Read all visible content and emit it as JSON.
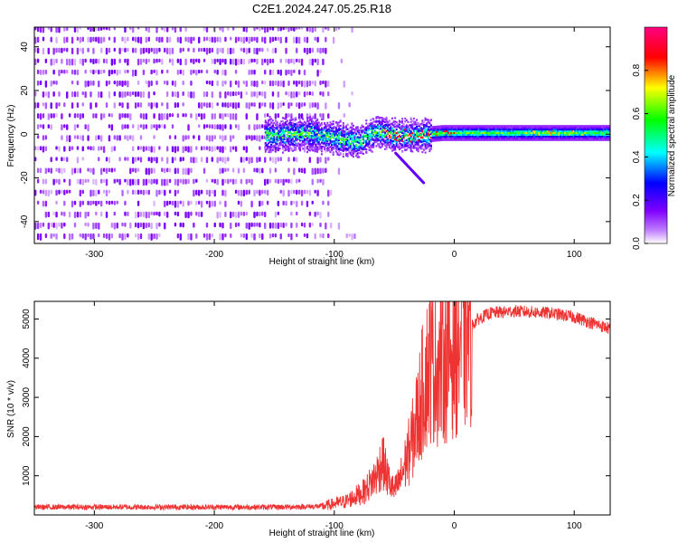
{
  "title": "C2E1.2024.247.05.25.R18",
  "chart_data": [
    {
      "type": "heatmap",
      "xlabel": "Height of straight line (km)",
      "ylabel": "Frequency (Hz)",
      "xlim": [
        -350,
        130
      ],
      "ylim": [
        -50,
        49
      ],
      "xticks": [
        -300,
        -200,
        -100,
        0,
        100
      ],
      "yticks": [
        -40,
        -20,
        0,
        20,
        40
      ],
      "colorbar": {
        "label": "Normalized spectral amplitude",
        "range": [
          0,
          1
        ],
        "ticks": [
          0.0,
          0.2,
          0.4,
          0.6,
          0.8
        ],
        "colors": [
          "#ffffff",
          "#8000ff",
          "#0000ff",
          "#00ffff",
          "#00ff00",
          "#ffff00",
          "#ff0000",
          "#ff0080"
        ]
      },
      "signal": {
        "band_center_hz": [
          [
            -155,
            0
          ],
          [
            -120,
            1
          ],
          [
            -100,
            -1
          ],
          [
            -80,
            -3
          ],
          [
            -65,
            2
          ],
          [
            -50,
            0
          ],
          [
            -30,
            0
          ],
          [
            -10,
            1
          ],
          [
            10,
            1
          ],
          [
            60,
            1
          ],
          [
            130,
            1
          ]
        ],
        "noise_end_km": -105
      }
    },
    {
      "type": "line",
      "xlabel": "Height of straight line (km)",
      "ylabel": "SNR (10 * v/v)",
      "xlim": [
        -350,
        130
      ],
      "ylim": [
        0,
        5450
      ],
      "xticks": [
        -300,
        -200,
        -100,
        0,
        100
      ],
      "yticks": [
        1000,
        2000,
        3000,
        4000,
        5000
      ],
      "color": "#ee3333",
      "envelope": [
        [
          -350,
          200
        ],
        [
          -150,
          200
        ],
        [
          -110,
          220
        ],
        [
          -90,
          350
        ],
        [
          -75,
          600
        ],
        [
          -65,
          1000
        ],
        [
          -60,
          1400
        ],
        [
          -55,
          900
        ],
        [
          -50,
          600
        ],
        [
          -45,
          900
        ],
        [
          -40,
          1400
        ],
        [
          -35,
          1900
        ],
        [
          -30,
          2600
        ],
        [
          -25,
          3400
        ],
        [
          -20,
          3900
        ],
        [
          -15,
          3800
        ],
        [
          -10,
          3900
        ],
        [
          -5,
          4100
        ],
        [
          0,
          4300
        ],
        [
          10,
          4700
        ],
        [
          20,
          5000
        ],
        [
          30,
          5150
        ],
        [
          50,
          5200
        ],
        [
          80,
          5150
        ],
        [
          100,
          5050
        ],
        [
          130,
          4750
        ]
      ]
    }
  ]
}
